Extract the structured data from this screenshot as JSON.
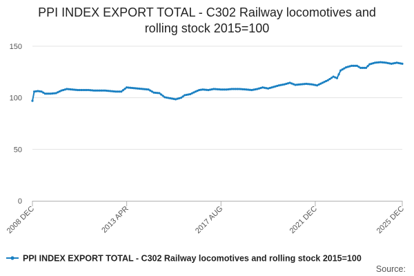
{
  "chart_data": {
    "type": "line",
    "title": "PPI INDEX EXPORT TOTAL - C302 Railway locomotives and rolling stock 2015=100",
    "title_lines": [
      "PPI INDEX EXPORT TOTAL - C302 Railway locomotives and",
      "rolling stock 2015=100"
    ],
    "xlabel": "",
    "ylabel": "",
    "ylim": [
      0,
      150
    ],
    "y_ticks": [
      0,
      50,
      100,
      150
    ],
    "x_tick_labels": [
      "2008 DEC",
      "2013 APR",
      "2017 AUG",
      "2021 DEC",
      "2025 DEC"
    ],
    "grid": true,
    "legend_position": "bottom",
    "source_label": "Source:",
    "series": [
      {
        "name": "PPI INDEX EXPORT TOTAL - C302 Railway locomotives and rolling stock 2015=100",
        "color": "#1a80c2",
        "points": [
          [
            "2008-12",
            97
          ],
          [
            "2009-01",
            106
          ],
          [
            "2009-03",
            106.5
          ],
          [
            "2009-05",
            106
          ],
          [
            "2009-07",
            104
          ],
          [
            "2009-10",
            104
          ],
          [
            "2010-01",
            104.5
          ],
          [
            "2010-04",
            107
          ],
          [
            "2010-07",
            108.5
          ],
          [
            "2010-10",
            108
          ],
          [
            "2011-01",
            107.5
          ],
          [
            "2011-04",
            107.5
          ],
          [
            "2011-07",
            107.5
          ],
          [
            "2011-10",
            107
          ],
          [
            "2012-01",
            107
          ],
          [
            "2012-04",
            107
          ],
          [
            "2012-07",
            106.5
          ],
          [
            "2012-10",
            106
          ],
          [
            "2013-01",
            106
          ],
          [
            "2013-04",
            110
          ],
          [
            "2013-07",
            109.5
          ],
          [
            "2013-10",
            109
          ],
          [
            "2014-01",
            108.5
          ],
          [
            "2014-04",
            108
          ],
          [
            "2014-07",
            105
          ],
          [
            "2014-10",
            104.5
          ],
          [
            "2015-01",
            100.5
          ],
          [
            "2015-04",
            99.5
          ],
          [
            "2015-07",
            98.5
          ],
          [
            "2015-10",
            100
          ],
          [
            "2015-12",
            102.5
          ],
          [
            "2016-03",
            103.5
          ],
          [
            "2016-06",
            106
          ],
          [
            "2016-08",
            107.5
          ],
          [
            "2016-10",
            108
          ],
          [
            "2017-01",
            107.5
          ],
          [
            "2017-04",
            108.5
          ],
          [
            "2017-08",
            108
          ],
          [
            "2017-11",
            108
          ],
          [
            "2018-02",
            108.5
          ],
          [
            "2018-06",
            108.5
          ],
          [
            "2018-10",
            108
          ],
          [
            "2019-01",
            107.5
          ],
          [
            "2019-04",
            108.5
          ],
          [
            "2019-07",
            110
          ],
          [
            "2019-10",
            109
          ],
          [
            "2020-01",
            110.5
          ],
          [
            "2020-04",
            112
          ],
          [
            "2020-07",
            113
          ],
          [
            "2020-10",
            114.5
          ],
          [
            "2021-01",
            112.5
          ],
          [
            "2021-04",
            113
          ],
          [
            "2021-07",
            113.5
          ],
          [
            "2021-10",
            113
          ],
          [
            "2022-01",
            112
          ],
          [
            "2022-04",
            114.5
          ],
          [
            "2022-07",
            117
          ],
          [
            "2022-10",
            120.5
          ],
          [
            "2022-12",
            119
          ],
          [
            "2023-02",
            126.5
          ],
          [
            "2023-05",
            129.5
          ],
          [
            "2023-08",
            131
          ],
          [
            "2023-11",
            131
          ],
          [
            "2024-01",
            129
          ],
          [
            "2024-04",
            129
          ],
          [
            "2024-06",
            132.5
          ],
          [
            "2024-09",
            134
          ],
          [
            "2024-12",
            134.5
          ],
          [
            "2025-03",
            134
          ],
          [
            "2025-06",
            133
          ],
          [
            "2025-09",
            134
          ],
          [
            "2025-12",
            133
          ]
        ]
      }
    ]
  }
}
